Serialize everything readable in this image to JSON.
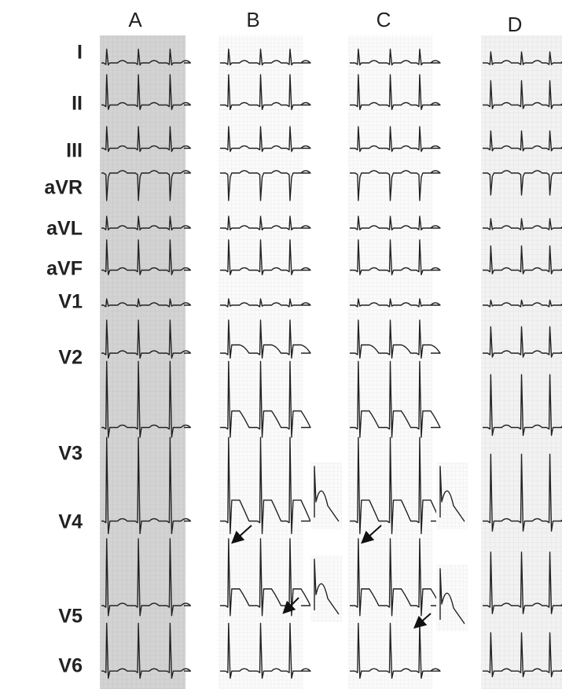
{
  "columns": [
    "A",
    "B",
    "C",
    "D"
  ],
  "leads": [
    "I",
    "II",
    "III",
    "aVR",
    "aVL",
    "aVF",
    "V1",
    "V2",
    "V3",
    "V4",
    "V5",
    "V6"
  ]
}
